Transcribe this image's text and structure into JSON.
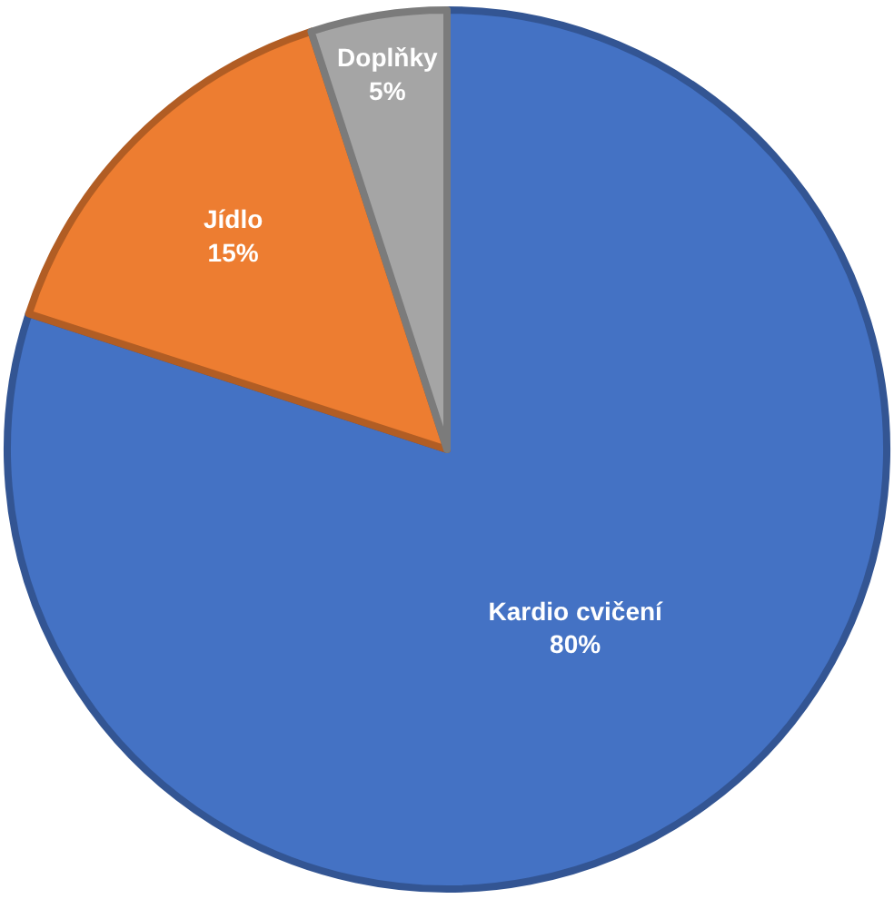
{
  "chart_data": {
    "type": "pie",
    "categories": [
      "Kardio cvičení",
      "Jídlo",
      "Doplňky"
    ],
    "values": [
      80,
      15,
      5
    ],
    "value_labels": [
      "80%",
      "15%",
      "5%"
    ],
    "colors": [
      "#4472c4",
      "#ed7d31",
      "#a5a5a5"
    ],
    "legend": false
  }
}
